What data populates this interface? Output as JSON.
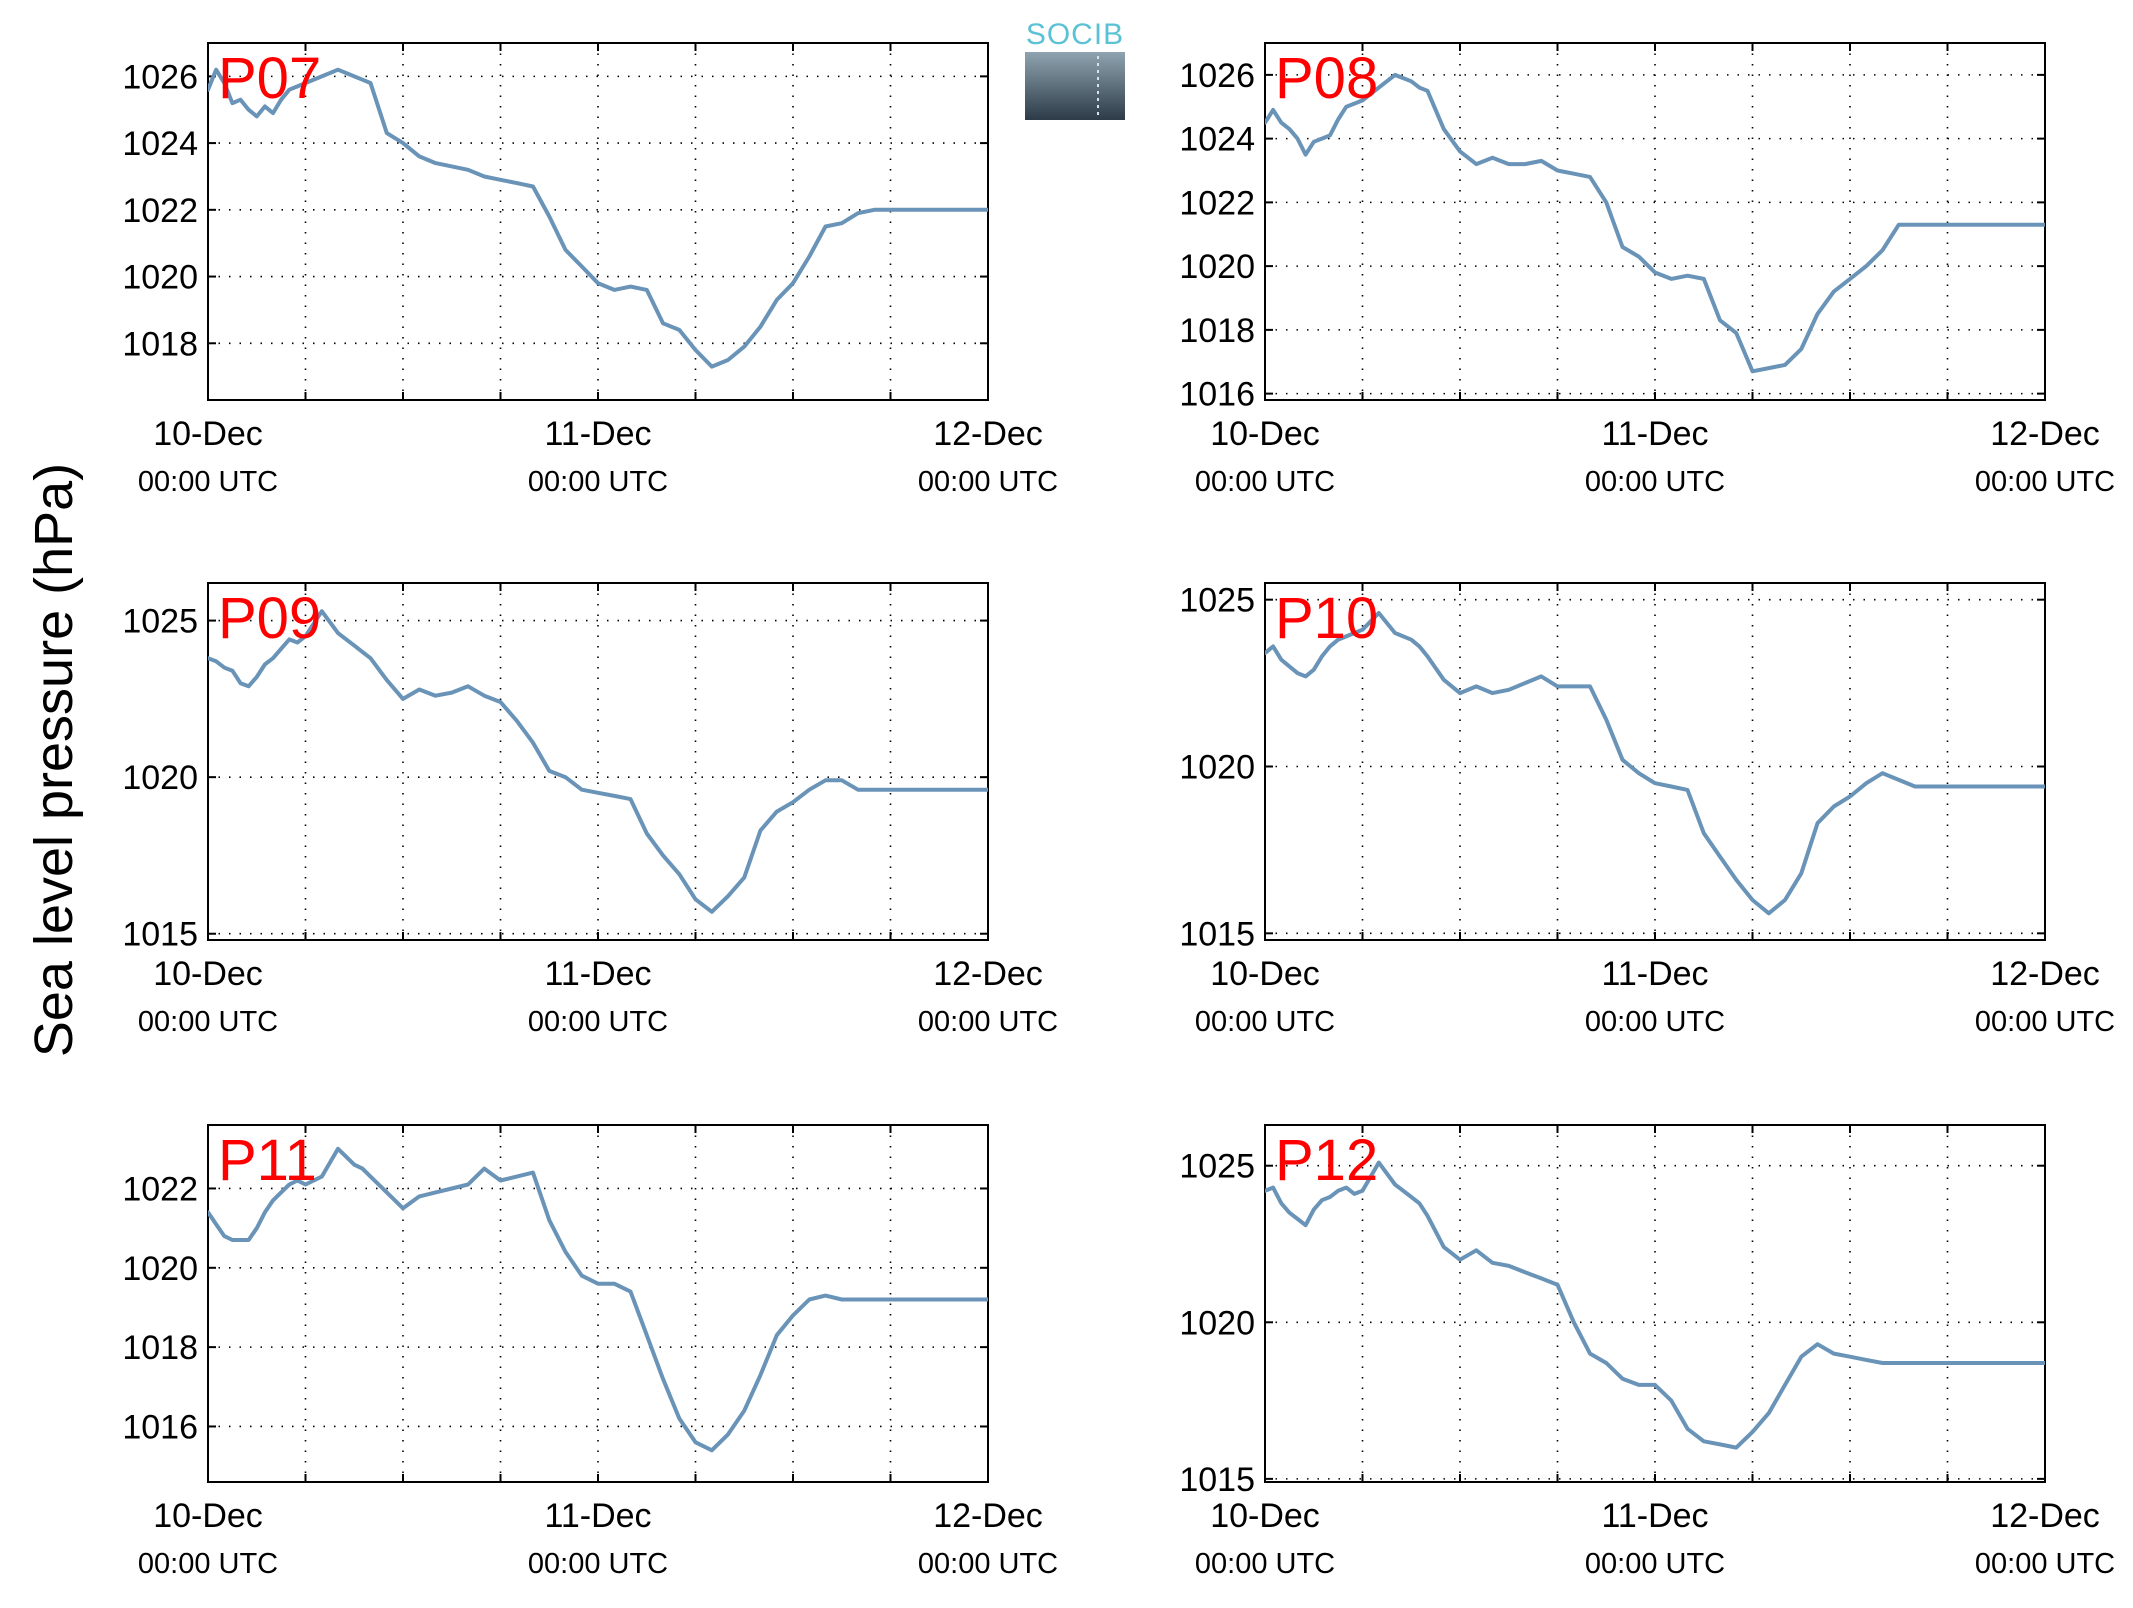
{
  "figure": {
    "ylabel": "Sea level pressure (hPa)",
    "logo_text": "SOCIB",
    "line_color": "#6a93b8",
    "title_color": "#ff0000"
  },
  "chart_data": [
    {
      "type": "line",
      "title": "P07",
      "x_tick_labels": [
        {
          "date": "10-Dec",
          "time": "00:00 UTC"
        },
        {
          "date": "11-Dec",
          "time": "00:00 UTC"
        },
        {
          "date": "12-Dec",
          "time": "00:00 UTC"
        }
      ],
      "xlim": [
        0,
        48
      ],
      "ylim": [
        1016.3,
        1027.0
      ],
      "yticks": [
        1018,
        1020,
        1022,
        1024,
        1026
      ],
      "grid": true,
      "x": [
        0,
        0.5,
        1,
        1.5,
        2,
        2.5,
        3,
        3.5,
        4,
        4.5,
        5,
        5.5,
        6,
        7,
        8,
        9,
        9.5,
        10,
        11,
        12,
        13,
        14,
        15,
        16,
        17,
        18,
        19,
        20,
        21,
        22,
        23,
        24,
        25,
        26,
        27,
        28,
        29,
        30,
        31,
        32,
        33,
        34,
        35,
        36,
        37,
        38,
        39,
        40,
        41,
        42,
        43,
        44,
        45,
        46,
        47,
        48
      ],
      "y": [
        1025.6,
        1026.2,
        1025.8,
        1025.2,
        1025.3,
        1025.0,
        1024.8,
        1025.1,
        1024.9,
        1025.3,
        1025.6,
        1025.7,
        1025.8,
        1026.0,
        1026.2,
        1026.0,
        1025.9,
        1025.8,
        1024.3,
        1024.0,
        1023.6,
        1023.4,
        1023.3,
        1023.2,
        1023.0,
        1022.9,
        1022.8,
        1022.7,
        1021.8,
        1020.8,
        1020.3,
        1019.8,
        1019.6,
        1019.7,
        1019.6,
        1018.6,
        1018.4,
        1017.8,
        1017.3,
        1017.5,
        1017.9,
        1018.5,
        1019.3,
        1019.8,
        1020.6,
        1021.5,
        1021.6,
        1021.9,
        1022.0,
        1022.0,
        1022.0,
        1022.0,
        1022.0,
        1022.0,
        1022.0,
        1022.0
      ]
    },
    {
      "type": "line",
      "title": "P08",
      "x_tick_labels": [
        {
          "date": "10-Dec",
          "time": "00:00 UTC"
        },
        {
          "date": "11-Dec",
          "time": "00:00 UTC"
        },
        {
          "date": "12-Dec",
          "time": "00:00 UTC"
        }
      ],
      "xlim": [
        0,
        48
      ],
      "ylim": [
        1015.8,
        1027.0
      ],
      "yticks": [
        1016,
        1018,
        1020,
        1022,
        1024,
        1026
      ],
      "grid": true,
      "x": [
        0,
        0.5,
        1,
        1.5,
        2,
        2.5,
        3,
        3.5,
        4,
        4.5,
        5,
        5.5,
        6,
        7,
        8,
        9,
        9.5,
        10,
        11,
        12,
        13,
        14,
        15,
        16,
        17,
        18,
        19,
        20,
        21,
        22,
        23,
        24,
        25,
        26,
        27,
        28,
        29,
        30,
        31,
        32,
        33,
        34,
        35,
        36,
        37,
        38,
        39,
        40,
        41,
        42,
        43,
        44,
        45,
        46,
        47,
        48
      ],
      "y": [
        1024.5,
        1024.9,
        1024.5,
        1024.3,
        1024.0,
        1023.5,
        1023.9,
        1024.0,
        1024.1,
        1024.6,
        1025.0,
        1025.1,
        1025.2,
        1025.6,
        1026.0,
        1025.8,
        1025.6,
        1025.5,
        1024.3,
        1023.6,
        1023.2,
        1023.4,
        1023.2,
        1023.2,
        1023.3,
        1023.0,
        1022.9,
        1022.8,
        1022.0,
        1020.6,
        1020.3,
        1019.8,
        1019.6,
        1019.7,
        1019.6,
        1018.3,
        1017.9,
        1016.7,
        1016.8,
        1016.9,
        1017.4,
        1018.5,
        1019.2,
        1019.6,
        1020.0,
        1020.5,
        1021.3,
        1021.3,
        1021.3,
        1021.3,
        1021.3,
        1021.3,
        1021.3,
        1021.3,
        1021.3,
        1021.3
      ]
    },
    {
      "type": "line",
      "title": "P09",
      "x_tick_labels": [
        {
          "date": "10-Dec",
          "time": "00:00 UTC"
        },
        {
          "date": "11-Dec",
          "time": "00:00 UTC"
        },
        {
          "date": "12-Dec",
          "time": "00:00 UTC"
        }
      ],
      "xlim": [
        0,
        48
      ],
      "ylim": [
        1014.8,
        1026.2
      ],
      "yticks": [
        1015,
        1020,
        1025
      ],
      "grid": true,
      "x": [
        0,
        0.5,
        1,
        1.5,
        2,
        2.5,
        3,
        3.5,
        4,
        4.5,
        5,
        5.5,
        6,
        7,
        8,
        9,
        9.5,
        10,
        11,
        12,
        13,
        14,
        15,
        16,
        17,
        18,
        19,
        20,
        21,
        22,
        23,
        24,
        25,
        26,
        27,
        28,
        29,
        30,
        31,
        32,
        33,
        34,
        35,
        36,
        37,
        38,
        39,
        40,
        41,
        42,
        43,
        44,
        45,
        46,
        47,
        48
      ],
      "y": [
        1023.8,
        1023.7,
        1023.5,
        1023.4,
        1023.0,
        1022.9,
        1023.2,
        1023.6,
        1023.8,
        1024.1,
        1024.4,
        1024.3,
        1024.5,
        1025.3,
        1024.6,
        1024.2,
        1024.0,
        1023.8,
        1023.1,
        1022.5,
        1022.8,
        1022.6,
        1022.7,
        1022.9,
        1022.6,
        1022.4,
        1021.8,
        1021.1,
        1020.2,
        1020.0,
        1019.6,
        1019.5,
        1019.4,
        1019.3,
        1018.2,
        1017.5,
        1016.9,
        1016.1,
        1015.7,
        1016.2,
        1016.8,
        1018.3,
        1018.9,
        1019.2,
        1019.6,
        1019.9,
        1019.9,
        1019.6,
        1019.6,
        1019.6,
        1019.6,
        1019.6,
        1019.6,
        1019.6,
        1019.6,
        1019.6
      ]
    },
    {
      "type": "line",
      "title": "P10",
      "x_tick_labels": [
        {
          "date": "10-Dec",
          "time": "00:00 UTC"
        },
        {
          "date": "11-Dec",
          "time": "00:00 UTC"
        },
        {
          "date": "12-Dec",
          "time": "00:00 UTC"
        }
      ],
      "xlim": [
        0,
        48
      ],
      "ylim": [
        1014.8,
        1025.5
      ],
      "yticks": [
        1015,
        1020,
        1025
      ],
      "grid": true,
      "x": [
        0,
        0.5,
        1,
        1.5,
        2,
        2.5,
        3,
        3.5,
        4,
        4.5,
        5,
        5.5,
        6,
        7,
        8,
        9,
        9.5,
        10,
        11,
        12,
        13,
        14,
        15,
        16,
        17,
        18,
        19,
        20,
        21,
        22,
        23,
        24,
        25,
        26,
        27,
        28,
        29,
        30,
        31,
        32,
        33,
        34,
        35,
        36,
        37,
        38,
        39,
        40,
        41,
        42,
        43,
        44,
        45,
        46,
        47,
        48
      ],
      "y": [
        1023.4,
        1023.6,
        1023.2,
        1023.0,
        1022.8,
        1022.7,
        1022.9,
        1023.3,
        1023.6,
        1023.8,
        1023.9,
        1024.0,
        1024.1,
        1024.6,
        1024.0,
        1023.8,
        1023.6,
        1023.3,
        1022.6,
        1022.2,
        1022.4,
        1022.2,
        1022.3,
        1022.5,
        1022.7,
        1022.4,
        1022.4,
        1022.4,
        1021.4,
        1020.2,
        1019.8,
        1019.5,
        1019.4,
        1019.3,
        1018.0,
        1017.3,
        1016.6,
        1016.0,
        1015.6,
        1016.0,
        1016.8,
        1018.3,
        1018.8,
        1019.1,
        1019.5,
        1019.8,
        1019.6,
        1019.4,
        1019.4,
        1019.4,
        1019.4,
        1019.4,
        1019.4,
        1019.4,
        1019.4,
        1019.4
      ]
    },
    {
      "type": "line",
      "title": "P11",
      "x_tick_labels": [
        {
          "date": "10-Dec",
          "time": "00:00 UTC"
        },
        {
          "date": "11-Dec",
          "time": "00:00 UTC"
        },
        {
          "date": "12-Dec",
          "time": "00:00 UTC"
        }
      ],
      "xlim": [
        0,
        48
      ],
      "ylim": [
        1014.6,
        1023.6
      ],
      "yticks": [
        1016,
        1018,
        1020,
        1022
      ],
      "grid": true,
      "x": [
        0,
        0.5,
        1,
        1.5,
        2,
        2.5,
        3,
        3.5,
        4,
        4.5,
        5,
        5.5,
        6,
        7,
        8,
        9,
        9.5,
        10,
        11,
        12,
        13,
        14,
        15,
        16,
        17,
        18,
        19,
        20,
        21,
        22,
        23,
        24,
        25,
        26,
        27,
        28,
        29,
        30,
        31,
        32,
        33,
        34,
        35,
        36,
        37,
        38,
        39,
        40,
        41,
        42,
        43,
        44,
        45,
        46,
        47,
        48
      ],
      "y": [
        1021.4,
        1021.1,
        1020.8,
        1020.7,
        1020.7,
        1020.7,
        1021.0,
        1021.4,
        1021.7,
        1021.9,
        1022.1,
        1022.2,
        1022.1,
        1022.3,
        1023.0,
        1022.6,
        1022.5,
        1022.3,
        1021.9,
        1021.5,
        1021.8,
        1021.9,
        1022.0,
        1022.1,
        1022.5,
        1022.2,
        1022.3,
        1022.4,
        1021.2,
        1020.4,
        1019.8,
        1019.6,
        1019.6,
        1019.4,
        1018.3,
        1017.2,
        1016.2,
        1015.6,
        1015.4,
        1015.8,
        1016.4,
        1017.3,
        1018.3,
        1018.8,
        1019.2,
        1019.3,
        1019.2,
        1019.2,
        1019.2,
        1019.2,
        1019.2,
        1019.2,
        1019.2,
        1019.2,
        1019.2,
        1019.2
      ]
    },
    {
      "type": "line",
      "title": "P12",
      "x_tick_labels": [
        {
          "date": "10-Dec",
          "time": "00:00 UTC"
        },
        {
          "date": "11-Dec",
          "time": "00:00 UTC"
        },
        {
          "date": "12-Dec",
          "time": "00:00 UTC"
        }
      ],
      "xlim": [
        0,
        48
      ],
      "ylim": [
        1014.9,
        1026.3
      ],
      "yticks": [
        1015,
        1020,
        1025
      ],
      "grid": true,
      "x": [
        0,
        0.5,
        1,
        1.5,
        2,
        2.5,
        3,
        3.5,
        4,
        4.5,
        5,
        5.5,
        6,
        7,
        8,
        9,
        9.5,
        10,
        11,
        12,
        13,
        14,
        15,
        16,
        17,
        18,
        19,
        20,
        21,
        22,
        23,
        24,
        25,
        26,
        27,
        28,
        29,
        30,
        31,
        32,
        33,
        34,
        35,
        36,
        37,
        38,
        39,
        40,
        41,
        42,
        43,
        44,
        45,
        46,
        47,
        48
      ],
      "y": [
        1024.2,
        1024.3,
        1023.8,
        1023.5,
        1023.3,
        1023.1,
        1023.6,
        1023.9,
        1024.0,
        1024.2,
        1024.3,
        1024.1,
        1024.2,
        1025.1,
        1024.4,
        1024.0,
        1023.8,
        1023.4,
        1022.4,
        1022.0,
        1022.3,
        1021.9,
        1021.8,
        1021.6,
        1021.4,
        1021.2,
        1020.0,
        1019.0,
        1018.7,
        1018.2,
        1018.0,
        1018.0,
        1017.5,
        1016.6,
        1016.2,
        1016.1,
        1016.0,
        1016.5,
        1017.1,
        1018.0,
        1018.9,
        1019.3,
        1019.0,
        1018.9,
        1018.8,
        1018.7,
        1018.7,
        1018.7,
        1018.7,
        1018.7,
        1018.7,
        1018.7,
        1018.7,
        1018.7,
        1018.7,
        1018.7
      ]
    }
  ]
}
